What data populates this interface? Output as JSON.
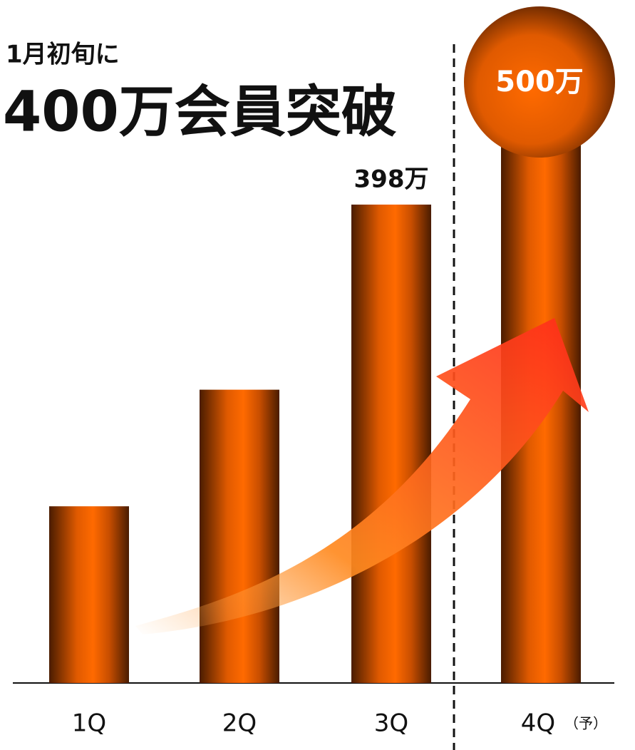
{
  "chart_data": {
    "type": "bar",
    "title": "400万会員突破",
    "subtitle": "1月初旬に",
    "categories": [
      "1Q",
      "2Q",
      "3Q",
      "4Q"
    ],
    "values": [
      147,
      244,
      398,
      500
    ],
    "value_labels": [
      null,
      null,
      "398万",
      "500万"
    ],
    "annotation": "（予）",
    "color": "#ff6a00"
  }
}
